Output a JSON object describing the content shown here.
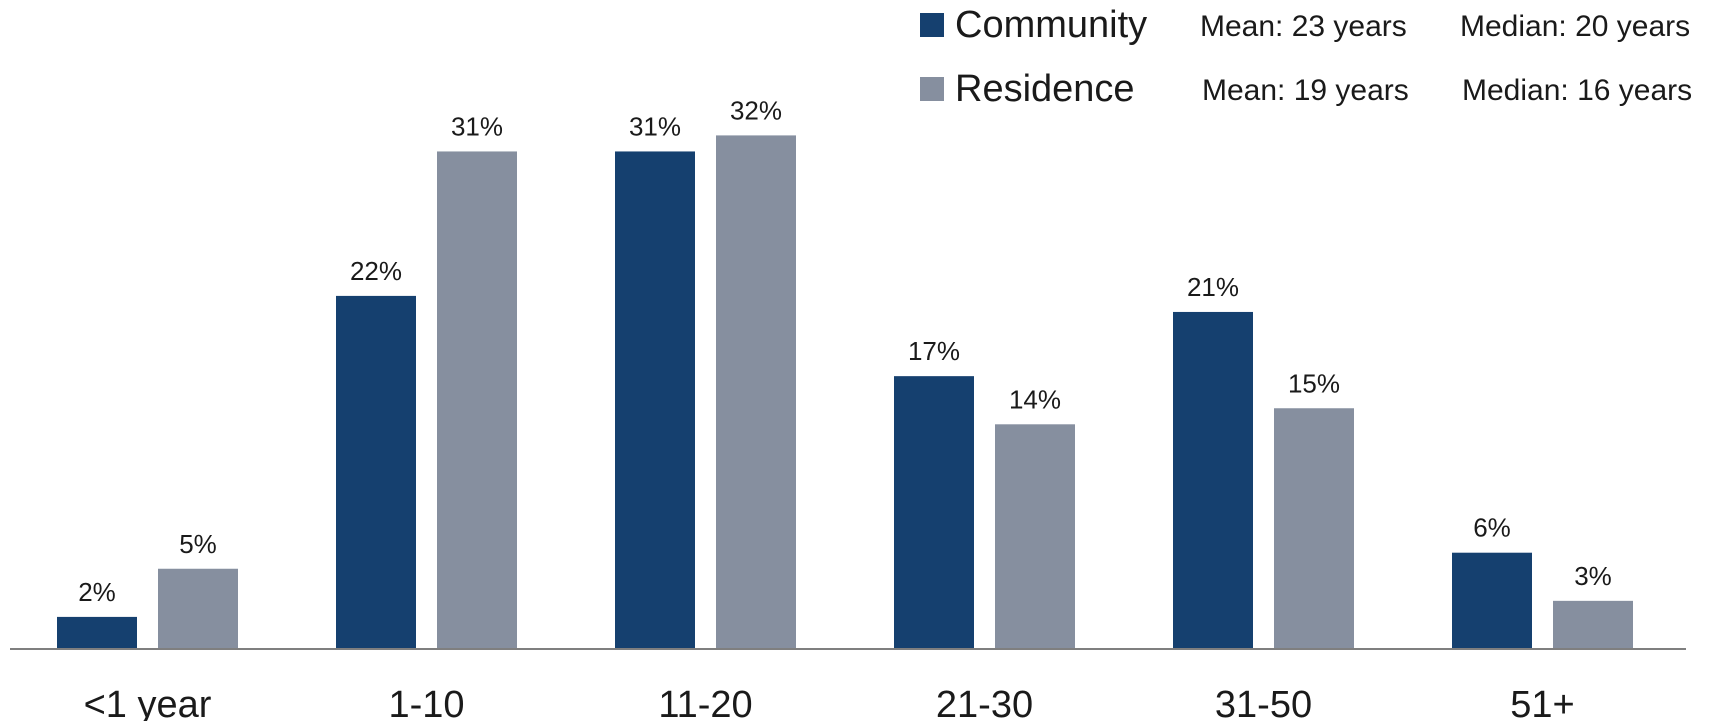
{
  "chart_data": {
    "type": "bar",
    "categories": [
      "<1 year",
      "1-10",
      "11-20",
      "21-30",
      "31-50",
      "51+"
    ],
    "series": [
      {
        "name": "Community",
        "color": "#15406f",
        "values": [
          2,
          22,
          31,
          17,
          21,
          6
        ],
        "labels": [
          "2%",
          "22%",
          "31%",
          "17%",
          "21%",
          "6%"
        ],
        "mean_text": "Mean: 23 years",
        "median_text": "Median: 20 years"
      },
      {
        "name": "Residence",
        "color": "#868f9f",
        "values": [
          5,
          31,
          32,
          14,
          15,
          3
        ],
        "labels": [
          "5%",
          "31%",
          "32%",
          "14%",
          "15%",
          "3%"
        ],
        "mean_text": "Mean: 19 years",
        "median_text": "Median: 16 years"
      }
    ],
    "value_unit": "%",
    "ylim": [
      0,
      33
    ],
    "legend_position": "top-right",
    "axis_color": "#7f7f7f",
    "grid": false
  }
}
